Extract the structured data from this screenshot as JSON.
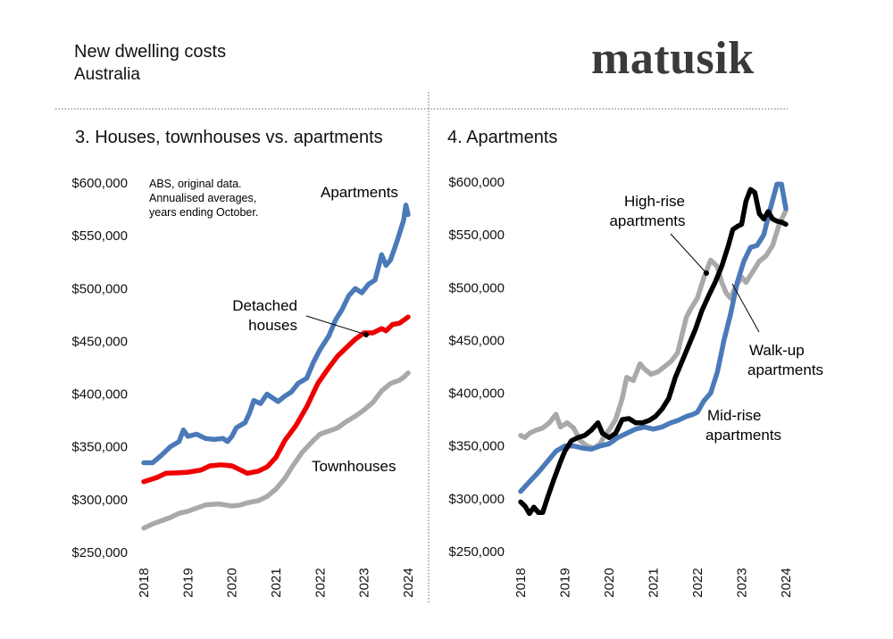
{
  "header": {
    "title": "New dwelling costs",
    "subtitle": "Australia",
    "logo": "matusik"
  },
  "colors": {
    "apartments": "#4a7ab8",
    "detached": "#ee0000",
    "townhouses": "#a9a9a9",
    "high_rise": "#000000",
    "mid_rise": "#4a7ab8",
    "walk_up": "#a9a9a9"
  },
  "chart_data": [
    {
      "type": "line",
      "title": "3. Houses, townhouses vs. apartments",
      "note": [
        "ABS, original data.",
        "Annualised averages,",
        "years ending October."
      ],
      "xticks": [
        "2018",
        "2019",
        "2020",
        "2021",
        "2022",
        "2023",
        "2024"
      ],
      "xlim": [
        2018.0,
        2024.0
      ],
      "ylim": [
        250000,
        600000
      ],
      "yticks": [
        "$250,000",
        "$300,000",
        "$350,000",
        "$400,000",
        "$450,000",
        "$500,000",
        "$550,000",
        "$600,000"
      ],
      "grid": false,
      "series": [
        {
          "name": "Apartments",
          "color_key": "apartments",
          "points": [
            [
              2018.0,
              335000
            ],
            [
              2018.2,
              335000
            ],
            [
              2018.4,
              342000
            ],
            [
              2018.6,
              350000
            ],
            [
              2018.8,
              355000
            ],
            [
              2018.9,
              366000
            ],
            [
              2019.0,
              360000
            ],
            [
              2019.2,
              362000
            ],
            [
              2019.4,
              358000
            ],
            [
              2019.6,
              357000
            ],
            [
              2019.8,
              358000
            ],
            [
              2019.9,
              355000
            ],
            [
              2020.0,
              360000
            ],
            [
              2020.1,
              368000
            ],
            [
              2020.3,
              373000
            ],
            [
              2020.4,
              382000
            ],
            [
              2020.5,
              394000
            ],
            [
              2020.65,
              391000
            ],
            [
              2020.8,
              400000
            ],
            [
              2020.9,
              397000
            ],
            [
              2021.05,
              393000
            ],
            [
              2021.2,
              398000
            ],
            [
              2021.35,
              402000
            ],
            [
              2021.5,
              410000
            ],
            [
              2021.7,
              415000
            ],
            [
              2021.85,
              430000
            ],
            [
              2022.0,
              442000
            ],
            [
              2022.2,
              455000
            ],
            [
              2022.35,
              470000
            ],
            [
              2022.5,
              480000
            ],
            [
              2022.65,
              493000
            ],
            [
              2022.8,
              500000
            ],
            [
              2022.95,
              496000
            ],
            [
              2023.1,
              504000
            ],
            [
              2023.25,
              508000
            ],
            [
              2023.4,
              532000
            ],
            [
              2023.5,
              522000
            ],
            [
              2023.6,
              527000
            ],
            [
              2023.75,
              545000
            ],
            [
              2023.9,
              565000
            ],
            [
              2023.95,
              579000
            ],
            [
              2024.0,
              570000
            ]
          ]
        },
        {
          "name": "Detached houses",
          "color_key": "detached",
          "points": [
            [
              2018.0,
              317000
            ],
            [
              2018.3,
              321000
            ],
            [
              2018.5,
              325000
            ],
            [
              2018.8,
              325500
            ],
            [
              2019.0,
              326000
            ],
            [
              2019.3,
              328000
            ],
            [
              2019.5,
              332000
            ],
            [
              2019.75,
              333000
            ],
            [
              2020.0,
              332000
            ],
            [
              2020.2,
              328000
            ],
            [
              2020.35,
              325000
            ],
            [
              2020.6,
              327000
            ],
            [
              2020.8,
              331000
            ],
            [
              2021.0,
              340000
            ],
            [
              2021.2,
              356000
            ],
            [
              2021.45,
              370000
            ],
            [
              2021.7,
              388000
            ],
            [
              2021.95,
              410000
            ],
            [
              2022.2,
              425000
            ],
            [
              2022.4,
              436000
            ],
            [
              2022.6,
              444000
            ],
            [
              2022.8,
              452000
            ],
            [
              2023.0,
              458000
            ],
            [
              2023.2,
              458000
            ],
            [
              2023.4,
              462000
            ],
            [
              2023.5,
              460000
            ],
            [
              2023.65,
              466000
            ],
            [
              2023.8,
              467000
            ],
            [
              2023.9,
              470000
            ],
            [
              2024.0,
              473000
            ]
          ]
        },
        {
          "name": "Townhouses",
          "color_key": "townhouses",
          "points": [
            [
              2018.0,
              273000
            ],
            [
              2018.2,
              277000
            ],
            [
              2018.4,
              280000
            ],
            [
              2018.6,
              283000
            ],
            [
              2018.8,
              287000
            ],
            [
              2019.0,
              289000
            ],
            [
              2019.2,
              292000
            ],
            [
              2019.4,
              295000
            ],
            [
              2019.7,
              296000
            ],
            [
              2020.0,
              294000
            ],
            [
              2020.2,
              295000
            ],
            [
              2020.35,
              297000
            ],
            [
              2020.6,
              299000
            ],
            [
              2020.8,
              303000
            ],
            [
              2021.0,
              310000
            ],
            [
              2021.2,
              320000
            ],
            [
              2021.4,
              333000
            ],
            [
              2021.6,
              345000
            ],
            [
              2021.85,
              356000
            ],
            [
              2022.0,
              362000
            ],
            [
              2022.2,
              365000
            ],
            [
              2022.4,
              368000
            ],
            [
              2022.6,
              374000
            ],
            [
              2022.8,
              379000
            ],
            [
              2023.0,
              385000
            ],
            [
              2023.2,
              392000
            ],
            [
              2023.4,
              403000
            ],
            [
              2023.6,
              410000
            ],
            [
              2023.8,
              413000
            ],
            [
              2023.9,
              416000
            ],
            [
              2024.0,
              420000
            ]
          ]
        }
      ],
      "annotations": {
        "apartments": "Apartments",
        "detached": [
          "Detached",
          "houses"
        ],
        "townhouses": "Townhouses"
      }
    },
    {
      "type": "line",
      "title": "4. Apartments",
      "xticks": [
        "2018",
        "2019",
        "2020",
        "2021",
        "2022",
        "2023",
        "2024"
      ],
      "xlim": [
        2018.0,
        2024.0
      ],
      "ylim": [
        250000,
        600000
      ],
      "yticks": [
        "$250,000",
        "$300,000",
        "$350,000",
        "$400,000",
        "$450,000",
        "$500,000",
        "$550,000",
        "$600,000"
      ],
      "grid": false,
      "series": [
        {
          "name": "Walk-up apartments",
          "color_key": "walk_up",
          "points": [
            [
              2018.0,
              360000
            ],
            [
              2018.1,
              358000
            ],
            [
              2018.2,
              362000
            ],
            [
              2018.35,
              365000
            ],
            [
              2018.5,
              367000
            ],
            [
              2018.65,
              372000
            ],
            [
              2018.8,
              380000
            ],
            [
              2018.9,
              368000
            ],
            [
              2019.05,
              372000
            ],
            [
              2019.2,
              367000
            ],
            [
              2019.35,
              355000
            ],
            [
              2019.5,
              350000
            ],
            [
              2019.65,
              348000
            ],
            [
              2019.8,
              352000
            ],
            [
              2019.9,
              360000
            ],
            [
              2020.0,
              365000
            ],
            [
              2020.15,
              375000
            ],
            [
              2020.3,
              395000
            ],
            [
              2020.4,
              415000
            ],
            [
              2020.55,
              412000
            ],
            [
              2020.7,
              428000
            ],
            [
              2020.8,
              423000
            ],
            [
              2020.95,
              418000
            ],
            [
              2021.1,
              420000
            ],
            [
              2021.25,
              425000
            ],
            [
              2021.4,
              430000
            ],
            [
              2021.55,
              438000
            ],
            [
              2021.75,
              472000
            ],
            [
              2021.85,
              480000
            ],
            [
              2022.0,
              490000
            ],
            [
              2022.15,
              510000
            ],
            [
              2022.3,
              526000
            ],
            [
              2022.45,
              520000
            ],
            [
              2022.55,
              505000
            ],
            [
              2022.65,
              495000
            ],
            [
              2022.75,
              490000
            ],
            [
              2022.85,
              500000
            ],
            [
              2023.0,
              510000
            ],
            [
              2023.1,
              505000
            ],
            [
              2023.25,
              515000
            ],
            [
              2023.4,
              525000
            ],
            [
              2023.55,
              530000
            ],
            [
              2023.7,
              540000
            ],
            [
              2023.85,
              560000
            ],
            [
              2024.0,
              573000
            ]
          ]
        },
        {
          "name": "Mid-rise apartments",
          "color_key": "mid_rise",
          "points": [
            [
              2018.0,
              307000
            ],
            [
              2018.2,
              316000
            ],
            [
              2018.4,
              325000
            ],
            [
              2018.6,
              335000
            ],
            [
              2018.8,
              345000
            ],
            [
              2019.0,
              350000
            ],
            [
              2019.2,
              350000
            ],
            [
              2019.4,
              348000
            ],
            [
              2019.6,
              347000
            ],
            [
              2019.8,
              350000
            ],
            [
              2020.0,
              352000
            ],
            [
              2020.2,
              358000
            ],
            [
              2020.4,
              362000
            ],
            [
              2020.6,
              366000
            ],
            [
              2020.8,
              368000
            ],
            [
              2021.0,
              366000
            ],
            [
              2021.2,
              368000
            ],
            [
              2021.4,
              372000
            ],
            [
              2021.55,
              374000
            ],
            [
              2021.75,
              378000
            ],
            [
              2021.9,
              380000
            ],
            [
              2022.0,
              382000
            ],
            [
              2022.15,
              393000
            ],
            [
              2022.3,
              400000
            ],
            [
              2022.45,
              420000
            ],
            [
              2022.6,
              450000
            ],
            [
              2022.75,
              475000
            ],
            [
              2022.9,
              505000
            ],
            [
              2023.05,
              525000
            ],
            [
              2023.2,
              538000
            ],
            [
              2023.35,
              540000
            ],
            [
              2023.5,
              550000
            ],
            [
              2023.65,
              575000
            ],
            [
              2023.8,
              598000
            ],
            [
              2023.9,
              598000
            ],
            [
              2024.0,
              575000
            ]
          ]
        },
        {
          "name": "High-rise apartments",
          "color_key": "high_rise",
          "points": [
            [
              2018.0,
              297000
            ],
            [
              2018.1,
              293000
            ],
            [
              2018.2,
              286000
            ],
            [
              2018.3,
              292000
            ],
            [
              2018.4,
              287000
            ],
            [
              2018.5,
              287000
            ],
            [
              2018.6,
              300000
            ],
            [
              2018.75,
              318000
            ],
            [
              2018.9,
              335000
            ],
            [
              2019.0,
              345000
            ],
            [
              2019.15,
              355000
            ],
            [
              2019.3,
              358000
            ],
            [
              2019.45,
              360000
            ],
            [
              2019.6,
              365000
            ],
            [
              2019.75,
              372000
            ],
            [
              2019.85,
              362000
            ],
            [
              2020.0,
              358000
            ],
            [
              2020.15,
              362000
            ],
            [
              2020.3,
              375000
            ],
            [
              2020.45,
              376000
            ],
            [
              2020.6,
              372000
            ],
            [
              2020.75,
              372000
            ],
            [
              2020.9,
              374000
            ],
            [
              2021.05,
              378000
            ],
            [
              2021.2,
              385000
            ],
            [
              2021.35,
              395000
            ],
            [
              2021.5,
              415000
            ],
            [
              2021.65,
              430000
            ],
            [
              2021.8,
              445000
            ],
            [
              2021.95,
              460000
            ],
            [
              2022.1,
              478000
            ],
            [
              2022.25,
              492000
            ],
            [
              2022.4,
              505000
            ],
            [
              2022.55,
              520000
            ],
            [
              2022.7,
              540000
            ],
            [
              2022.8,
              555000
            ],
            [
              2022.9,
              558000
            ],
            [
              2023.0,
              560000
            ],
            [
              2023.1,
              582000
            ],
            [
              2023.2,
              593000
            ],
            [
              2023.3,
              590000
            ],
            [
              2023.4,
              570000
            ],
            [
              2023.5,
              565000
            ],
            [
              2023.6,
              572000
            ],
            [
              2023.7,
              565000
            ],
            [
              2023.8,
              563000
            ],
            [
              2023.9,
              562000
            ],
            [
              2024.0,
              560000
            ]
          ]
        }
      ],
      "annotations": {
        "high_rise": [
          "High-rise",
          "apartments"
        ],
        "walk_up": [
          "Walk-up",
          "apartments"
        ],
        "mid_rise": [
          "Mid-rise",
          "apartments"
        ]
      }
    }
  ]
}
